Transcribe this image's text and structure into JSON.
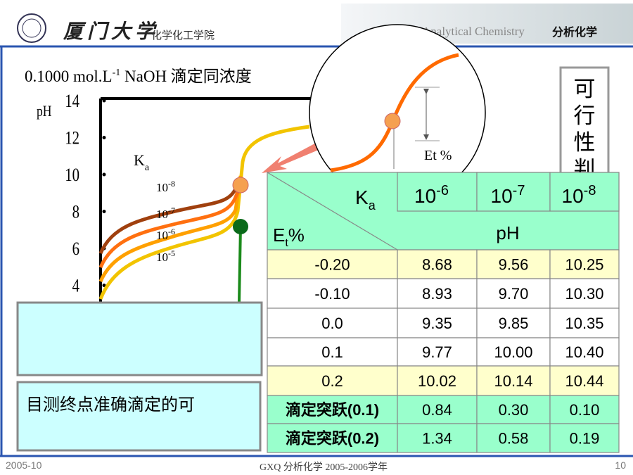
{
  "header": {
    "logo_text": "厦门大学",
    "school": "化学化工学院",
    "course_en": "Analytical Chemistry",
    "course_cn": "分析化学"
  },
  "title": {
    "prefix": "0.1000 mol.L",
    "sup": "-1",
    "suffix": " NaOH 滴定同浓度"
  },
  "plot": {
    "y_label": "pH",
    "yticks": [
      "14",
      "12",
      "10",
      "8",
      "6",
      "4"
    ],
    "ka_label": {
      "base": "K",
      "sub": "a"
    },
    "curve_labels": [
      {
        "base": "10",
        "exp": "-8"
      },
      {
        "base": "10",
        "exp": "-7"
      },
      {
        "base": "10",
        "exp": "-6"
      },
      {
        "base": "10",
        "exp": "-5"
      }
    ],
    "zoom_label": "Et %"
  },
  "side_box": "可行性判",
  "table": {
    "corner_top": {
      "base": "K",
      "sub": "a"
    },
    "corner_bottom": {
      "base": "E",
      "sub": "t",
      "suffix": "%"
    },
    "columns": [
      {
        "base": "10",
        "exp": "-6"
      },
      {
        "base": "10",
        "exp": "-7"
      },
      {
        "base": "10",
        "exp": "-8"
      }
    ],
    "unit": "pH",
    "rows": [
      [
        "-0.20",
        "8.68",
        "9.56",
        "10.25"
      ],
      [
        "-0.10",
        "8.93",
        "9.70",
        "10.30"
      ],
      [
        "0.0",
        "9.35",
        "9.85",
        "10.35"
      ],
      [
        "0.1",
        "9.77",
        "10.00",
        "10.40"
      ],
      [
        "0.2",
        "10.02",
        "10.14",
        "10.44"
      ],
      [
        "滴定突跃(0.1)",
        "0.84",
        "0.30",
        "0.10"
      ],
      [
        "滴定突跃(0.2)",
        "1.34",
        "0.58",
        "0.19"
      ]
    ]
  },
  "note_box": "目测终点准确滴定的可",
  "footer": {
    "date": "2005-10",
    "center": "GXQ 分析化学 2005-2006学年",
    "page": "10"
  }
}
